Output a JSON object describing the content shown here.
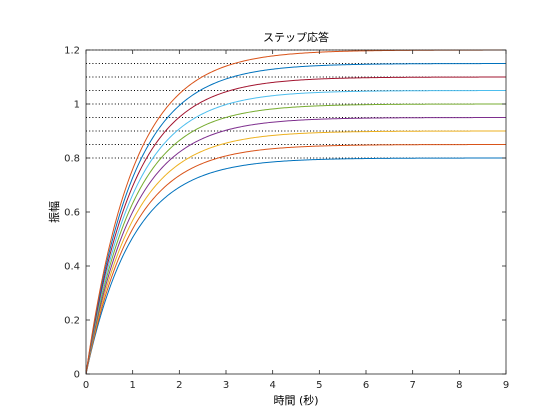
{
  "chart_data": {
    "type": "line",
    "title": "ステップ応答",
    "xlabel": "時間 (秒)",
    "ylabel": "振幅",
    "xlim": [
      0,
      9
    ],
    "ylim": [
      0,
      1.2
    ],
    "xticks": [
      0,
      1,
      2,
      3,
      4,
      5,
      6,
      7,
      8,
      9
    ],
    "yticks": [
      0,
      0.2,
      0.4,
      0.6,
      0.8,
      1,
      1.2
    ],
    "xtick_labels": [
      "0",
      "1",
      "2",
      "3",
      "4",
      "5",
      "6",
      "7",
      "8",
      "9"
    ],
    "ytick_labels": [
      "0",
      "0.2",
      "0.4",
      "0.6",
      "0.8",
      "1",
      "1.2"
    ],
    "grid": false,
    "response_model": "first-order: y = K (1 - exp(-t/tau))",
    "time_constant": 1,
    "steady_state_reference_lines": {
      "values": [
        0.8,
        0.85,
        0.9,
        0.95,
        1.0,
        1.05,
        1.1,
        1.15,
        1.2
      ],
      "style": "dotted",
      "color": "#000000"
    },
    "series": [
      {
        "gain": 0.8,
        "color": "#0072BD"
      },
      {
        "gain": 0.85,
        "color": "#D95319"
      },
      {
        "gain": 0.9,
        "color": "#EDB120"
      },
      {
        "gain": 0.95,
        "color": "#7E2F8E"
      },
      {
        "gain": 1.0,
        "color": "#77AC30"
      },
      {
        "gain": 1.05,
        "color": "#4DBEEE"
      },
      {
        "gain": 1.1,
        "color": "#A2142F"
      },
      {
        "gain": 1.15,
        "color": "#0072BD"
      },
      {
        "gain": 1.2,
        "color": "#D95319"
      }
    ]
  }
}
